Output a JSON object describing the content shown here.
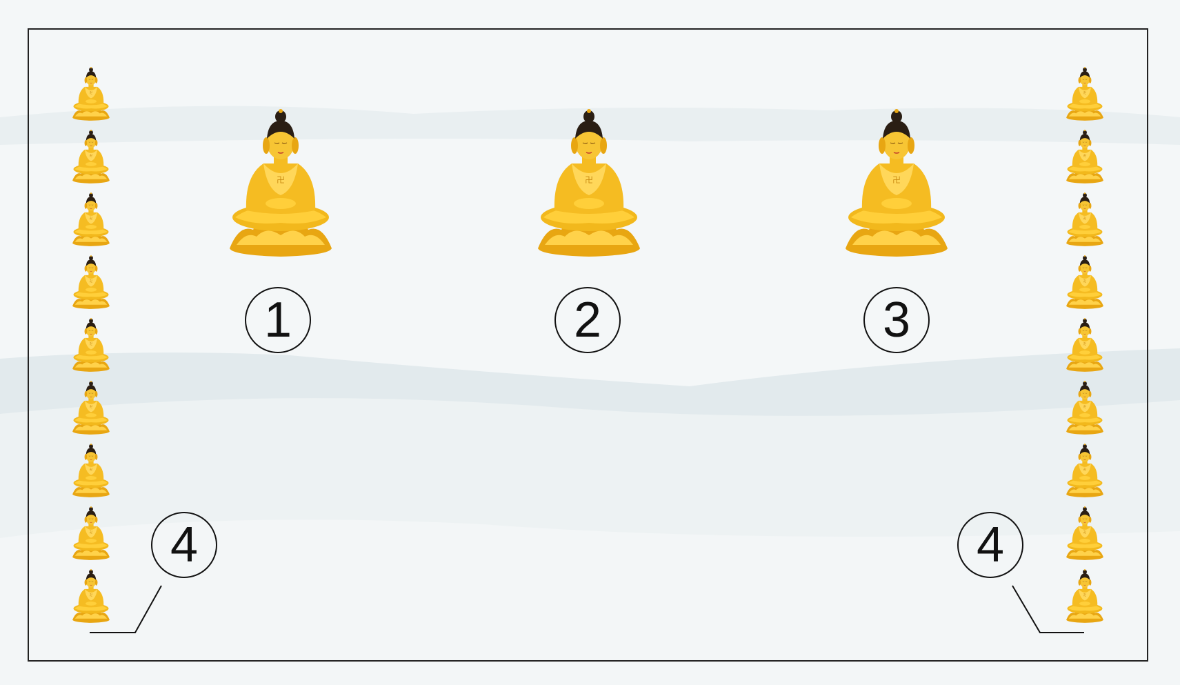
{
  "markers": {
    "m1": "1",
    "m2": "2",
    "m3": "3",
    "m4_left": "4",
    "m4_right": "4"
  },
  "colors": {
    "gold": "#f2b81c",
    "gold_light": "#ffe070",
    "gold_dark": "#c98a10",
    "hair": "#2a1e14",
    "frame": "#222222",
    "wash": "#dde6e9"
  },
  "figures": {
    "large_count": 3,
    "left_column_count": 9,
    "right_column_count": 9,
    "icon": "seated-buddha-icon"
  }
}
